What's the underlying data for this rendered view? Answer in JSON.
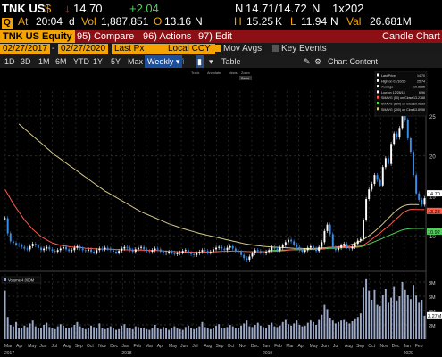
{
  "quote": {
    "ticker": "TNK US",
    "currency": "$",
    "last_price": "14.70",
    "change": "+2.04",
    "exchange_code": "N",
    "bid_ask": "14.71/14.72",
    "bid_ask_suffix": "N",
    "size": "1x202",
    "at_label": "At",
    "time": "20:04",
    "time_suffix": "d",
    "vol_label": "Vol",
    "volume": "1,887,851",
    "open_label": "O",
    "open": "13.16",
    "open_suffix": "N",
    "high_label": "H",
    "high": "15.25",
    "high_suffix": "K",
    "low_label": "L",
    "low": "11.94",
    "low_suffix": "N",
    "val_label": "Val",
    "value": "26.681M"
  },
  "toolbar": {
    "security": "TNK US Equity",
    "compare": "95) Compare",
    "actions": "96) Actions",
    "edit": "97) Edit",
    "title": "Candle Chart"
  },
  "params": {
    "start_date": "02/27/2017",
    "end_date": "02/27/2020",
    "price_field": "Last Px",
    "currency": "Local CCY",
    "mov_avgs": "Mov Avgs",
    "key_events": "Key Events"
  },
  "periods": {
    "items": [
      "1D",
      "3D",
      "1M",
      "6M",
      "YTD",
      "1Y",
      "5Y",
      "Max"
    ],
    "frequency": "Weekly",
    "table": "Table",
    "chart_content": "Chart Content"
  },
  "legend": {
    "items": [
      {
        "label": "Last Price",
        "value": "14.70",
        "color": "#ffffff"
      },
      {
        "label": "High on 01/10/20",
        "value": "25.74",
        "color": "#ffffff"
      },
      {
        "label": "Average",
        "value": "10.8885",
        "color": "#ffffff"
      },
      {
        "label": "Low on 12/28/18",
        "value": "6.96",
        "color": "#ffffff"
      },
      {
        "label": "SMAVG (50) on Close",
        "value": "13.2788",
        "color": "#ff5a4a"
      },
      {
        "label": "SMAVG (100) on Close",
        "value": "10.9233",
        "color": "#4fd05a"
      },
      {
        "label": "SMAVG (200) on Close",
        "value": "13.8956",
        "color": "#d6c98a"
      }
    ]
  },
  "volume_legend": "Volume 4.000M",
  "price_axis": [
    "25",
    "20",
    "15",
    "10"
  ],
  "price_badges": [
    "14.70",
    "13.28",
    "10.92"
  ],
  "volume_axis": [
    "8M",
    "6M",
    "4M",
    "2M"
  ],
  "volume_badge": "3.27M",
  "x_months": [
    "Mar",
    "Apr",
    "May",
    "Jun",
    "Jul",
    "Aug",
    "Sep",
    "Oct",
    "Nov",
    "Dec",
    "Jan",
    "Feb",
    "Mar",
    "Apr",
    "May",
    "Jun",
    "Jul",
    "Aug",
    "Sep",
    "Oct",
    "Nov",
    "Dec",
    "Jan",
    "Feb",
    "Mar",
    "Apr",
    "May",
    "Jun",
    "Jul",
    "Aug",
    "Sep",
    "Oct",
    "Nov",
    "Dec",
    "Jan",
    "Feb"
  ],
  "x_years": [
    "2017",
    "2018",
    "2019",
    "2020"
  ],
  "mini_tools": [
    "Track",
    "Annotate",
    "News",
    "Zoom"
  ],
  "colors": {
    "accent": "#f4a300",
    "header_red": "#8b0f14",
    "candle_up": "#ffffff",
    "candle_down": "#3a8ee6",
    "volume_bar": "#9ba8c8",
    "sma50": "#ff5a4a",
    "sma100": "#4fd05a",
    "sma200": "#d6c98a"
  },
  "chart_data": {
    "type": "candlestick",
    "frequency": "weekly",
    "price_ylim": [
      6,
      27
    ],
    "close": [
      12.2,
      10.3,
      9.3,
      9.1,
      8.9,
      8.8,
      8.6,
      8.4,
      8.3,
      8.7,
      9.0,
      8.8,
      8.5,
      8.2,
      8.4,
      8.6,
      8.3,
      8.1,
      8.0,
      8.2,
      8.4,
      8.6,
      8.3,
      8.1,
      8.2,
      8.5,
      8.7,
      8.4,
      8.2,
      8.1,
      8.3,
      8.0,
      7.9,
      8.2,
      8.4,
      8.3,
      8.5,
      8.4,
      8.2,
      8.0,
      7.9,
      8.1,
      8.4,
      8.6,
      8.5,
      8.2,
      8.0,
      8.3,
      8.5,
      8.6,
      8.3,
      8.1,
      8.0,
      8.2,
      8.4,
      8.3,
      8.0,
      7.8,
      7.9,
      8.0,
      7.9,
      7.7,
      7.8,
      7.9,
      8.1,
      8.2,
      7.9,
      7.7,
      7.6,
      7.8,
      8.0,
      8.2,
      8.1,
      7.9,
      8.0,
      8.3,
      8.5,
      8.6,
      8.4,
      8.2,
      8.5,
      8.7,
      8.4,
      8.1,
      8.0,
      7.6,
      7.2,
      7.0,
      7.4,
      7.8,
      8.2,
      8.1,
      7.9,
      7.8,
      8.0,
      8.2,
      8.6,
      8.4,
      8.2,
      8.5,
      8.8,
      9.2,
      9.5,
      9.3,
      8.9,
      8.6,
      8.2,
      8.0,
      8.2,
      8.5,
      8.7,
      8.4,
      8.1,
      8.6,
      9.2,
      10.6,
      11.4,
      10.2,
      8.6,
      8.2,
      8.5,
      8.8,
      9.0,
      8.6,
      8.4,
      8.6,
      9.0,
      9.4,
      9.6,
      12.0,
      14.6,
      15.8,
      16.5,
      17.6,
      17.0,
      16.3,
      18.6,
      19.7,
      19.0,
      21.5,
      22.8,
      22.3,
      23.5,
      25.7,
      24.5,
      22.2,
      20.5,
      17.6,
      15.3,
      14.5,
      13.9,
      14.7
    ],
    "sma50": [
      15.8,
      15.2,
      14.6,
      14.0,
      13.5,
      13.0,
      12.5,
      12.0,
      11.6,
      11.2,
      10.8,
      10.5,
      10.2,
      9.9,
      9.7,
      9.5,
      9.3,
      9.1,
      9.0,
      8.9,
      8.8,
      8.75,
      8.7,
      8.65,
      8.6,
      8.58,
      8.56,
      8.55,
      8.5,
      8.45,
      8.42,
      8.4,
      8.38,
      8.36,
      8.35,
      8.34,
      8.33,
      8.32,
      8.31,
      8.3,
      8.28,
      8.26,
      8.25,
      8.24,
      8.23,
      8.22,
      8.21,
      8.2,
      8.2,
      8.2,
      8.19,
      8.18,
      8.17,
      8.16,
      8.15,
      8.14,
      8.12,
      8.1,
      8.08,
      8.06,
      8.04,
      8.02,
      8.0,
      7.99,
      7.98,
      7.97,
      7.96,
      7.95,
      7.94,
      7.93,
      7.93,
      7.94,
      7.95,
      7.96,
      7.97,
      7.98,
      8.0,
      8.02,
      8.04,
      8.05,
      8.06,
      8.07,
      8.08,
      8.08,
      8.08,
      8.06,
      8.04,
      8.02,
      8.01,
      8.0,
      8.0,
      8.0,
      8.0,
      8.0,
      8.0,
      8.02,
      8.04,
      8.06,
      8.08,
      8.1,
      8.12,
      8.15,
      8.2,
      8.24,
      8.26,
      8.28,
      8.28,
      8.28,
      8.28,
      8.29,
      8.3,
      8.31,
      8.32,
      8.34,
      8.38,
      8.45,
      8.52,
      8.56,
      8.56,
      8.56,
      8.58,
      8.6,
      8.62,
      8.62,
      8.62,
      8.63,
      8.65,
      8.68,
      8.72,
      8.85,
      9.05,
      9.3,
      9.55,
      9.85,
      10.1,
      10.35,
      10.65,
      10.95,
      11.2,
      11.5,
      11.85,
      12.15,
      12.45,
      12.8,
      13.05,
      13.2,
      13.3,
      13.3,
      13.28,
      13.28,
      13.27,
      13.28
    ],
    "sma100": [
      null,
      null,
      null,
      null,
      null,
      null,
      null,
      null,
      null,
      null,
      null,
      null,
      null,
      null,
      null,
      null,
      null,
      null,
      null,
      null,
      null,
      null,
      null,
      null,
      null,
      null,
      null,
      null,
      null,
      null,
      null,
      null,
      null,
      null,
      null,
      null,
      null,
      null,
      null,
      null,
      null,
      null,
      null,
      null,
      null,
      null,
      null,
      null,
      null,
      null,
      null,
      null,
      null,
      null,
      null,
      null,
      null,
      null,
      null,
      null,
      null,
      null,
      null,
      null,
      null,
      null,
      null,
      null,
      null,
      null,
      null,
      null,
      null,
      null,
      null,
      null,
      null,
      null,
      null,
      null,
      null,
      null,
      null,
      null,
      null,
      null,
      null,
      null,
      null,
      null,
      null,
      null,
      null,
      null,
      null,
      8.15,
      8.16,
      8.17,
      8.18,
      8.19,
      8.2,
      8.21,
      8.22,
      8.23,
      8.24,
      8.24,
      8.25,
      8.25,
      8.26,
      8.27,
      8.28,
      8.29,
      8.3,
      8.31,
      8.33,
      8.36,
      8.4,
      8.43,
      8.44,
      8.45,
      8.46,
      8.48,
      8.5,
      8.51,
      8.52,
      8.54,
      8.56,
      8.58,
      8.62,
      8.72,
      8.84,
      8.98,
      9.12,
      9.26,
      9.4,
      9.55,
      9.7,
      9.86,
      10.0,
      10.15,
      10.3,
      10.45,
      10.6,
      10.72,
      10.8,
      10.86,
      10.9,
      10.92,
      10.92,
      10.92,
      10.92,
      10.92
    ],
    "sma200": [
      null,
      null,
      null,
      null,
      null,
      24.0,
      23.7,
      23.4,
      23.1,
      22.8,
      22.5,
      22.2,
      21.9,
      21.6,
      21.3,
      21.0,
      20.7,
      20.4,
      20.1,
      19.85,
      19.6,
      19.35,
      19.1,
      18.85,
      18.6,
      18.35,
      18.1,
      17.85,
      17.6,
      17.35,
      17.1,
      16.85,
      16.6,
      16.35,
      16.1,
      15.85,
      15.6,
      15.4,
      15.2,
      15.0,
      14.8,
      14.6,
      14.4,
      14.2,
      14.0,
      13.8,
      13.6,
      13.4,
      13.2,
      13.0,
      12.85,
      12.7,
      12.55,
      12.4,
      12.25,
      12.1,
      11.95,
      11.8,
      11.65,
      11.5,
      11.38,
      11.26,
      11.14,
      11.02,
      10.9,
      10.8,
      10.7,
      10.6,
      10.5,
      10.4,
      10.3,
      10.22,
      10.14,
      10.06,
      9.98,
      9.9,
      9.82,
      9.74,
      9.66,
      9.58,
      9.5,
      9.42,
      9.34,
      9.26,
      9.18,
      9.1,
      9.02,
      8.96,
      8.9,
      8.85,
      8.8,
      8.76,
      8.72,
      8.68,
      8.65,
      8.62,
      8.6,
      8.58,
      8.56,
      8.54,
      8.52,
      8.5,
      8.48,
      8.46,
      8.44,
      8.43,
      8.42,
      8.41,
      8.4,
      8.4,
      8.4,
      8.41,
      8.42,
      8.44,
      8.47,
      8.5,
      8.53,
      8.55,
      8.57,
      8.59,
      8.62,
      8.66,
      8.7,
      8.76,
      8.84,
      8.94,
      9.06,
      9.2,
      9.36,
      9.55,
      9.76,
      10.0,
      10.26,
      10.54,
      10.84,
      11.16,
      11.5,
      11.85,
      12.2,
      12.55,
      12.9,
      13.2,
      13.45,
      13.65,
      13.8,
      13.88,
      13.9,
      13.9,
      13.9,
      13.89
    ],
    "volume_millions": [
      6.8,
      3.1,
      2.0,
      1.8,
      2.4,
      1.6,
      1.5,
      1.9,
      1.7,
      2.2,
      2.6,
      1.8,
      1.6,
      1.5,
      2.0,
      2.3,
      1.7,
      1.5,
      1.4,
      1.8,
      2.1,
      1.9,
      1.6,
      1.5,
      1.7,
      2.0,
      2.4,
      1.8,
      1.6,
      1.4,
      1.5,
      1.9,
      1.7,
      1.6,
      2.2,
      1.5,
      1.4,
      1.6,
      1.8,
      1.5,
      1.3,
      1.4,
      1.9,
      2.1,
      1.6,
      1.5,
      1.4,
      1.8,
      1.7,
      1.5,
      1.6,
      1.4,
      1.3,
      1.5,
      2.0,
      1.6,
      1.4,
      1.7,
      1.5,
      1.3,
      1.6,
      1.8,
      1.5,
      1.4,
      1.3,
      1.7,
      1.9,
      1.6,
      1.4,
      1.5,
      1.8,
      2.4,
      1.7,
      1.5,
      1.4,
      1.6,
      1.9,
      2.1,
      1.6,
      1.5,
      1.7,
      2.0,
      1.8,
      1.6,
      1.5,
      1.9,
      2.2,
      2.6,
      1.8,
      1.7,
      2.0,
      2.3,
      1.9,
      1.7,
      1.6,
      2.0,
      2.3,
      1.8,
      1.7,
      1.9,
      2.4,
      2.8,
      2.1,
      1.9,
      2.2,
      2.6,
      2.0,
      1.8,
      1.9,
      2.3,
      2.6,
      2.4,
      2.0,
      2.8,
      3.4,
      4.8,
      4.2,
      3.0,
      2.6,
      2.2,
      2.4,
      2.6,
      2.8,
      2.4,
      2.2,
      2.5,
      2.9,
      3.1,
      3.6,
      7.2,
      8.4,
      6.8,
      5.5,
      6.9,
      4.8,
      4.6,
      6.2,
      7.0,
      5.2,
      5.8,
      7.3,
      5.4,
      6.0,
      8.0,
      6.9,
      6.2,
      5.6,
      7.6,
      6.1,
      5.2,
      5.5,
      3.27
    ],
    "volume_ylim": [
      0,
      9
    ],
    "start_date": "02/27/2017",
    "end_date": "02/27/2020"
  }
}
